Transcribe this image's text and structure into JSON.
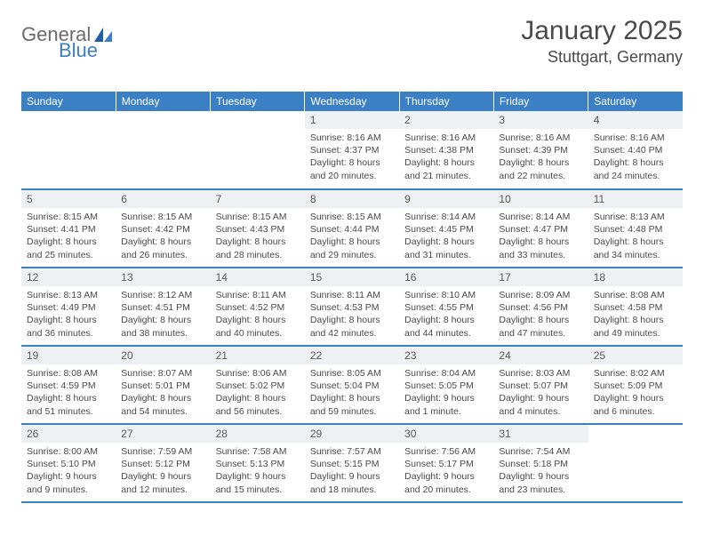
{
  "brand": {
    "word1": "General",
    "word2": "Blue",
    "word1_color": "#6b6b6b",
    "word2_color": "#3b7fc4"
  },
  "header": {
    "month_title": "January 2025",
    "location": "Stuttgart, Germany"
  },
  "style": {
    "header_bg": "#3b7fc4",
    "header_fg": "#ffffff",
    "daynum_bg": "#eef1f4",
    "row_border": "#3b7fc4",
    "text_color": "#4a4a4a"
  },
  "dayNames": [
    "Sunday",
    "Monday",
    "Tuesday",
    "Wednesday",
    "Thursday",
    "Friday",
    "Saturday"
  ],
  "weeks": [
    [
      null,
      null,
      null,
      {
        "n": "1",
        "sunrise": "8:16 AM",
        "sunset": "4:37 PM",
        "day_h": "8",
        "day_m": "20"
      },
      {
        "n": "2",
        "sunrise": "8:16 AM",
        "sunset": "4:38 PM",
        "day_h": "8",
        "day_m": "21"
      },
      {
        "n": "3",
        "sunrise": "8:16 AM",
        "sunset": "4:39 PM",
        "day_h": "8",
        "day_m": "22"
      },
      {
        "n": "4",
        "sunrise": "8:16 AM",
        "sunset": "4:40 PM",
        "day_h": "8",
        "day_m": "24"
      }
    ],
    [
      {
        "n": "5",
        "sunrise": "8:15 AM",
        "sunset": "4:41 PM",
        "day_h": "8",
        "day_m": "25"
      },
      {
        "n": "6",
        "sunrise": "8:15 AM",
        "sunset": "4:42 PM",
        "day_h": "8",
        "day_m": "26"
      },
      {
        "n": "7",
        "sunrise": "8:15 AM",
        "sunset": "4:43 PM",
        "day_h": "8",
        "day_m": "28"
      },
      {
        "n": "8",
        "sunrise": "8:15 AM",
        "sunset": "4:44 PM",
        "day_h": "8",
        "day_m": "29"
      },
      {
        "n": "9",
        "sunrise": "8:14 AM",
        "sunset": "4:45 PM",
        "day_h": "8",
        "day_m": "31"
      },
      {
        "n": "10",
        "sunrise": "8:14 AM",
        "sunset": "4:47 PM",
        "day_h": "8",
        "day_m": "33"
      },
      {
        "n": "11",
        "sunrise": "8:13 AM",
        "sunset": "4:48 PM",
        "day_h": "8",
        "day_m": "34"
      }
    ],
    [
      {
        "n": "12",
        "sunrise": "8:13 AM",
        "sunset": "4:49 PM",
        "day_h": "8",
        "day_m": "36"
      },
      {
        "n": "13",
        "sunrise": "8:12 AM",
        "sunset": "4:51 PM",
        "day_h": "8",
        "day_m": "38"
      },
      {
        "n": "14",
        "sunrise": "8:11 AM",
        "sunset": "4:52 PM",
        "day_h": "8",
        "day_m": "40"
      },
      {
        "n": "15",
        "sunrise": "8:11 AM",
        "sunset": "4:53 PM",
        "day_h": "8",
        "day_m": "42"
      },
      {
        "n": "16",
        "sunrise": "8:10 AM",
        "sunset": "4:55 PM",
        "day_h": "8",
        "day_m": "44"
      },
      {
        "n": "17",
        "sunrise": "8:09 AM",
        "sunset": "4:56 PM",
        "day_h": "8",
        "day_m": "47"
      },
      {
        "n": "18",
        "sunrise": "8:08 AM",
        "sunset": "4:58 PM",
        "day_h": "8",
        "day_m": "49"
      }
    ],
    [
      {
        "n": "19",
        "sunrise": "8:08 AM",
        "sunset": "4:59 PM",
        "day_h": "8",
        "day_m": "51"
      },
      {
        "n": "20",
        "sunrise": "8:07 AM",
        "sunset": "5:01 PM",
        "day_h": "8",
        "day_m": "54"
      },
      {
        "n": "21",
        "sunrise": "8:06 AM",
        "sunset": "5:02 PM",
        "day_h": "8",
        "day_m": "56"
      },
      {
        "n": "22",
        "sunrise": "8:05 AM",
        "sunset": "5:04 PM",
        "day_h": "8",
        "day_m": "59"
      },
      {
        "n": "23",
        "sunrise": "8:04 AM",
        "sunset": "5:05 PM",
        "day_h": "9",
        "day_m": "1"
      },
      {
        "n": "24",
        "sunrise": "8:03 AM",
        "sunset": "5:07 PM",
        "day_h": "9",
        "day_m": "4"
      },
      {
        "n": "25",
        "sunrise": "8:02 AM",
        "sunset": "5:09 PM",
        "day_h": "9",
        "day_m": "6"
      }
    ],
    [
      {
        "n": "26",
        "sunrise": "8:00 AM",
        "sunset": "5:10 PM",
        "day_h": "9",
        "day_m": "9"
      },
      {
        "n": "27",
        "sunrise": "7:59 AM",
        "sunset": "5:12 PM",
        "day_h": "9",
        "day_m": "12"
      },
      {
        "n": "28",
        "sunrise": "7:58 AM",
        "sunset": "5:13 PM",
        "day_h": "9",
        "day_m": "15"
      },
      {
        "n": "29",
        "sunrise": "7:57 AM",
        "sunset": "5:15 PM",
        "day_h": "9",
        "day_m": "18"
      },
      {
        "n": "30",
        "sunrise": "7:56 AM",
        "sunset": "5:17 PM",
        "day_h": "9",
        "day_m": "20"
      },
      {
        "n": "31",
        "sunrise": "7:54 AM",
        "sunset": "5:18 PM",
        "day_h": "9",
        "day_m": "23"
      },
      null
    ]
  ]
}
